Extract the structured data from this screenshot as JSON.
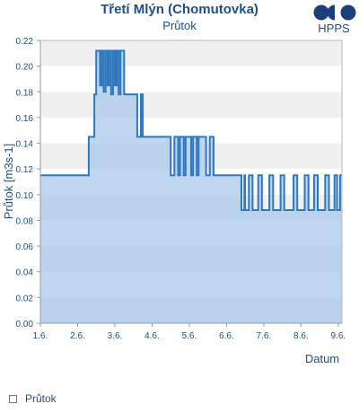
{
  "header": {
    "title": "Třetí Mlýn (Chomutovka)",
    "subtitle": "Průtok",
    "logo_text": "HPPS",
    "logo_icon": "hpps-logo-icon"
  },
  "legend": {
    "label": "Průtok"
  },
  "colors": {
    "line": "#2e78c0",
    "fill": "#a9c8ec",
    "band": "#f0f0f0",
    "text": "#1f4f8b"
  },
  "chart_data": {
    "type": "area",
    "title": "Třetí Mlýn (Chomutovka)",
    "subtitle": "Průtok",
    "xlabel": "Datum",
    "ylabel": "Průtok [m3s-1]",
    "x_ticks": [
      "1.6.",
      "2.6.",
      "3.6.",
      "4.6.",
      "5.6.",
      "6.6.",
      "7.6.",
      "8.6.",
      "9.6."
    ],
    "y_ticks": [
      "0.00",
      "0.02",
      "0.04",
      "0.06",
      "0.08",
      "0.10",
      "0.12",
      "0.14",
      "0.16",
      "0.18",
      "0.20",
      "0.22"
    ],
    "xlim": [
      0,
      8.1
    ],
    "ylim": [
      0,
      0.22
    ],
    "grid": "alternating-bands",
    "legend_position": "bottom-left",
    "series": [
      {
        "name": "Průtok",
        "x": [
          0,
          1.3,
          1.3,
          1.45,
          1.45,
          1.5,
          1.5,
          1.6,
          1.6,
          1.65,
          1.65,
          1.7,
          1.7,
          1.75,
          1.75,
          1.8,
          1.8,
          1.85,
          1.85,
          1.9,
          1.9,
          1.95,
          1.95,
          2.0,
          2.0,
          2.05,
          2.05,
          2.1,
          2.1,
          2.15,
          2.15,
          2.25,
          2.25,
          2.6,
          2.6,
          2.7,
          2.7,
          2.75,
          2.75,
          3.5,
          3.5,
          3.6,
          3.6,
          3.7,
          3.7,
          3.75,
          3.75,
          3.85,
          3.85,
          3.9,
          3.9,
          4.05,
          4.05,
          4.1,
          4.1,
          4.2,
          4.2,
          4.25,
          4.25,
          4.45,
          4.45,
          4.55,
          4.55,
          4.65,
          4.65,
          4.7,
          4.7,
          5.4,
          5.4,
          5.48,
          5.48,
          5.5,
          5.5,
          5.6,
          5.6,
          5.7,
          5.7,
          5.85,
          5.85,
          5.95,
          5.95,
          6.15,
          6.15,
          6.25,
          6.25,
          6.45,
          6.45,
          6.55,
          6.55,
          6.8,
          6.8,
          6.9,
          6.9,
          7.1,
          7.1,
          7.2,
          7.2,
          7.35,
          7.35,
          7.45,
          7.45,
          7.65,
          7.65,
          7.75,
          7.75,
          7.9,
          7.9,
          7.97,
          7.97,
          8.05,
          8.05,
          8.1
        ],
        "y": [
          0.115,
          0.115,
          0.145,
          0.145,
          0.178,
          0.178,
          0.212,
          0.212,
          0.185,
          0.185,
          0.212,
          0.212,
          0.18,
          0.18,
          0.212,
          0.212,
          0.185,
          0.185,
          0.212,
          0.212,
          0.178,
          0.178,
          0.212,
          0.212,
          0.185,
          0.185,
          0.212,
          0.212,
          0.178,
          0.178,
          0.212,
          0.212,
          0.178,
          0.178,
          0.145,
          0.145,
          0.178,
          0.178,
          0.145,
          0.145,
          0.115,
          0.115,
          0.145,
          0.145,
          0.115,
          0.115,
          0.145,
          0.145,
          0.115,
          0.115,
          0.145,
          0.145,
          0.115,
          0.115,
          0.145,
          0.145,
          0.115,
          0.115,
          0.145,
          0.145,
          0.115,
          0.115,
          0.145,
          0.145,
          0.115,
          0.115,
          0.115,
          0.115,
          0.088,
          0.088,
          0.115,
          0.115,
          0.088,
          0.088,
          0.115,
          0.115,
          0.088,
          0.088,
          0.115,
          0.115,
          0.088,
          0.088,
          0.115,
          0.115,
          0.088,
          0.088,
          0.115,
          0.115,
          0.088,
          0.088,
          0.115,
          0.115,
          0.088,
          0.088,
          0.115,
          0.115,
          0.088,
          0.088,
          0.115,
          0.115,
          0.088,
          0.088,
          0.115,
          0.115,
          0.088,
          0.088,
          0.115,
          0.115,
          0.088,
          0.088,
          0.115,
          0.115
        ]
      }
    ]
  }
}
